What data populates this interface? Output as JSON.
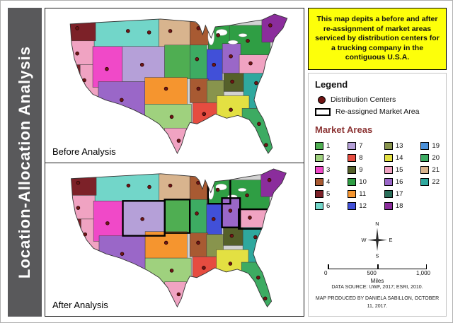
{
  "page": {
    "sidebar_title": "Location-Allocation Analysis"
  },
  "description": {
    "text": "This map depits a before and after re-assignment of market areas serviced by distribution centers for a trucking company in the contiguous U.S.A."
  },
  "maps": {
    "before_label": "Before Analysis",
    "after_label": "After Analysis"
  },
  "legend": {
    "title": "Legend",
    "distribution_centers_label": "Distribution Centers",
    "reassigned_label": "Re-assigned Market Area",
    "market_areas_title": "Market Areas",
    "symbol_colors": {
      "distribution_center": "#701414",
      "reassigned_outline": "#000000"
    },
    "market_areas": [
      {
        "id": "1",
        "color": "#4fae52"
      },
      {
        "id": "2",
        "color": "#9fd17e"
      },
      {
        "id": "3",
        "color": "#f049c8"
      },
      {
        "id": "4",
        "color": "#a85a32"
      },
      {
        "id": "5",
        "color": "#7c2128"
      },
      {
        "id": "6",
        "color": "#72d6c9"
      },
      {
        "id": "7",
        "color": "#b5a0d8"
      },
      {
        "id": "8",
        "color": "#e64c40"
      },
      {
        "id": "9",
        "color": "#55602a"
      },
      {
        "id": "10",
        "color": "#2f9e44"
      },
      {
        "id": "11",
        "color": "#f5952f"
      },
      {
        "id": "12",
        "color": "#4150d8"
      },
      {
        "id": "13",
        "color": "#88944d"
      },
      {
        "id": "14",
        "color": "#e3e042"
      },
      {
        "id": "15",
        "color": "#f0a3c2"
      },
      {
        "id": "16",
        "color": "#9a67c8"
      },
      {
        "id": "17",
        "color": "#2a6e5a"
      },
      {
        "id": "18",
        "color": "#8b2d9c"
      },
      {
        "id": "19",
        "color": "#4a90d9"
      },
      {
        "id": "20",
        "color": "#3dab62"
      },
      {
        "id": "21",
        "color": "#d8b48e"
      },
      {
        "id": "22",
        "color": "#2fa89e"
      }
    ]
  },
  "compass": {
    "n": "N",
    "e": "E",
    "s": "S",
    "w": "W"
  },
  "scalebar": {
    "labels": [
      "0",
      "500",
      "1,000"
    ],
    "unit": "Miles"
  },
  "credits": {
    "source": "DATA SOURCE: UWF, 2017; ESRI, 2010.",
    "produced": "MAP PRODUCED BY DANIELA SABILLON, OCTOBER 11, 2017."
  }
}
